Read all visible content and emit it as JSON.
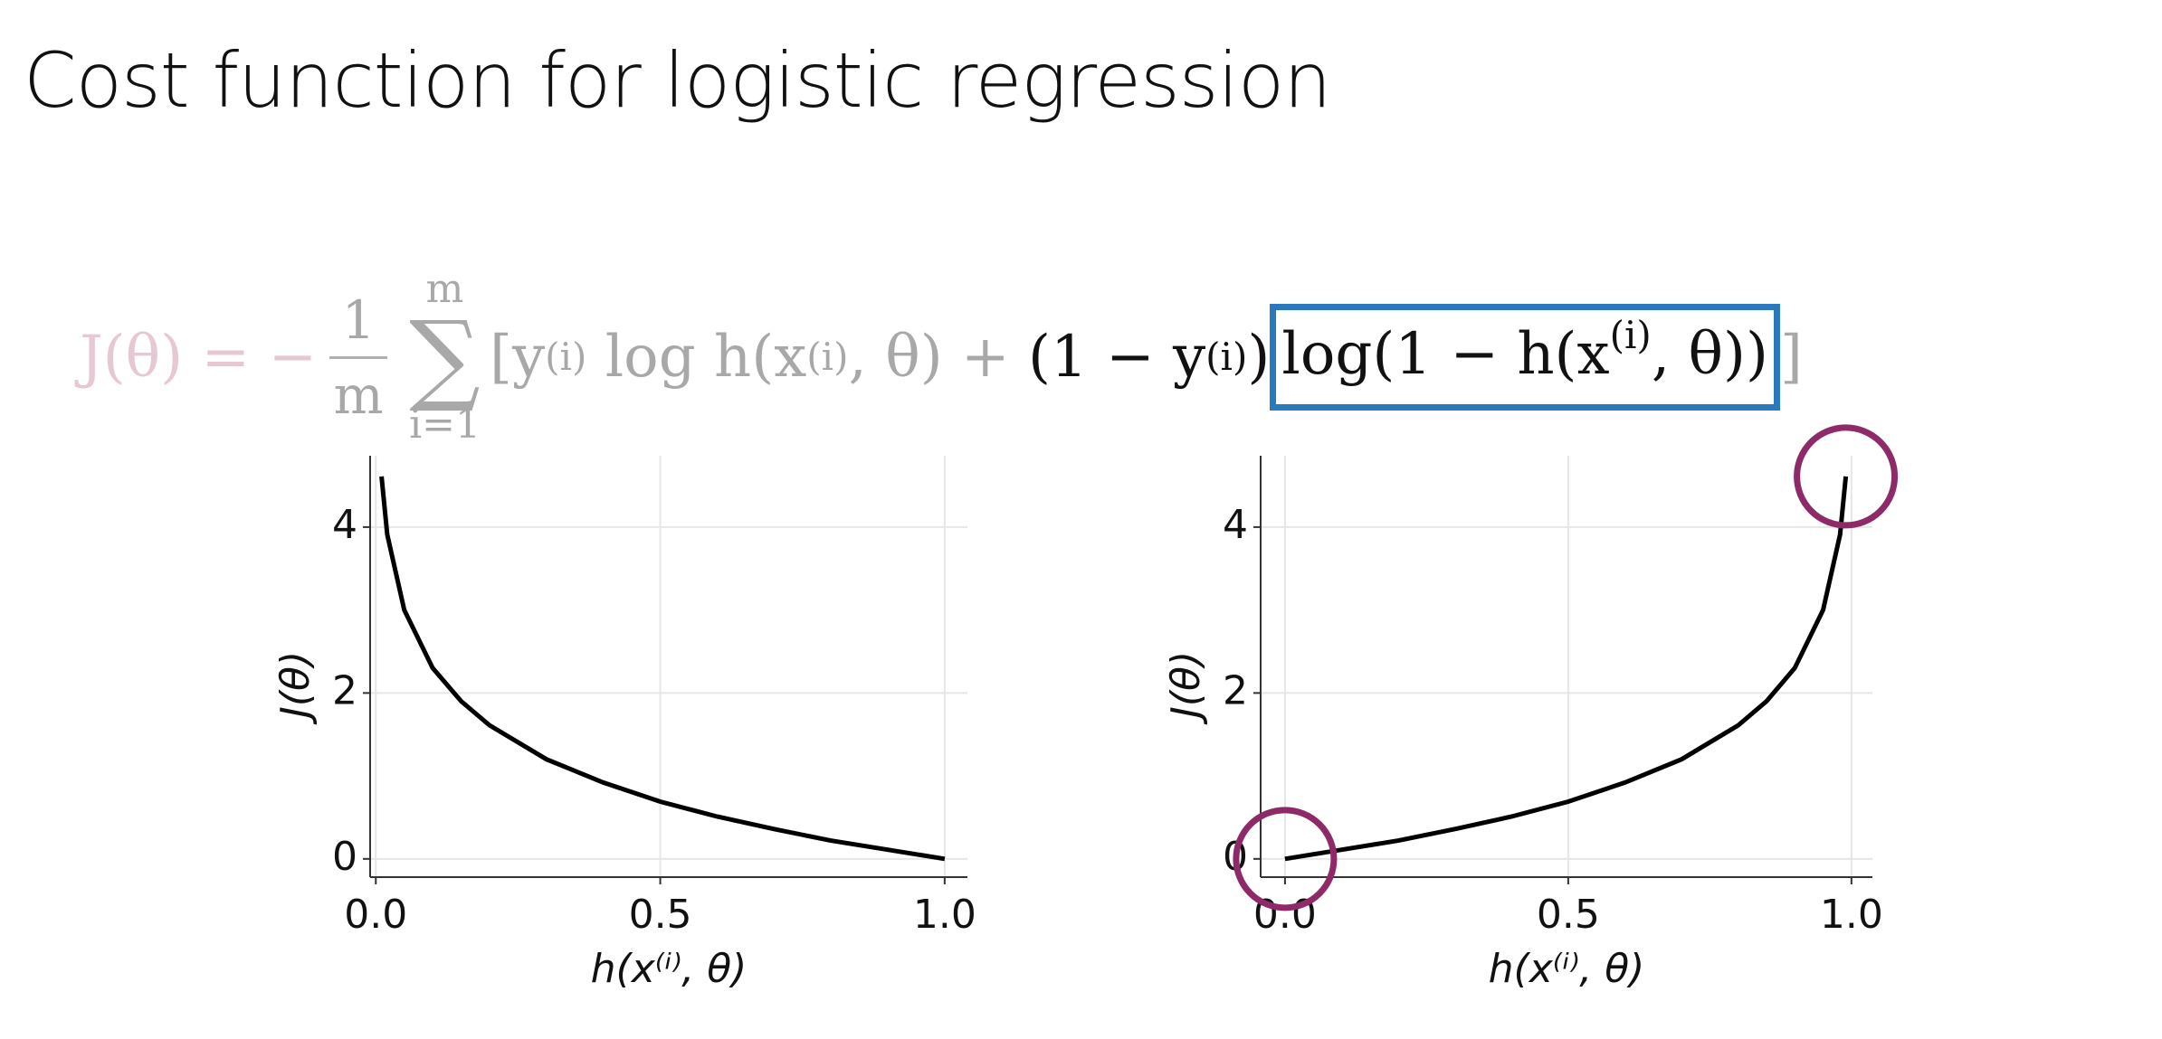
{
  "title": "Cost function for logistic regression",
  "formula": {
    "lhs": "J(θ) = −",
    "frac_num": "1",
    "frac_den": "m",
    "sum_symbol": "∑",
    "sum_upper": "m",
    "sum_lower": "i=1",
    "segments": [
      {
        "text": "[y",
        "style": "gray"
      },
      {
        "text": "(i)",
        "style": "gray",
        "sup": true
      },
      {
        "text": " log h(x",
        "style": "gray"
      },
      {
        "text": "(i)",
        "style": "gray",
        "sup": true
      },
      {
        "text": ", θ) + ",
        "style": "gray"
      },
      {
        "text": "(1 − y",
        "style": "black"
      },
      {
        "text": "(i)",
        "style": "black",
        "sup": true
      },
      {
        "text": ")",
        "style": "black"
      },
      {
        "text": "log(1 − h(x",
        "style": "boxed"
      },
      {
        "text": "(i)",
        "style": "boxed",
        "sup": true
      },
      {
        "text": ", θ))",
        "style": "boxed"
      },
      {
        "text": "]",
        "style": "gray"
      }
    ]
  },
  "chart_data": [
    {
      "type": "line",
      "color": "#000000",
      "xlabel": "h(x⁽ⁱ⁾, θ)",
      "ylabel": "J(θ)",
      "grid": true,
      "x": [
        0.01,
        0.02,
        0.05,
        0.1,
        0.15,
        0.2,
        0.3,
        0.4,
        0.5,
        0.6,
        0.7,
        0.8,
        0.9,
        1.0
      ],
      "values": [
        4.61,
        3.91,
        3.0,
        2.3,
        1.9,
        1.61,
        1.2,
        0.92,
        0.69,
        0.51,
        0.36,
        0.22,
        0.11,
        0
      ],
      "xlim": [
        -0.01,
        1.04
      ],
      "ylim": [
        -0.22,
        4.86
      ],
      "xticks": [
        {
          "value": 0,
          "label": "0.0"
        },
        0.5,
        {
          "value": 1,
          "label": "1.0"
        }
      ],
      "yticks": [
        0,
        2,
        4
      ],
      "highlight_ends": false
    },
    {
      "type": "line",
      "color": "#000000",
      "xlabel": "h(x⁽ⁱ⁾, θ)",
      "ylabel": "J(θ)",
      "grid": true,
      "x": [
        0.0,
        0.1,
        0.2,
        0.3,
        0.4,
        0.5,
        0.6,
        0.7,
        0.8,
        0.85,
        0.9,
        0.95,
        0.98,
        0.99
      ],
      "values": [
        0,
        0.11,
        0.22,
        0.36,
        0.51,
        0.69,
        0.92,
        1.2,
        1.61,
        1.9,
        2.3,
        3.0,
        3.91,
        4.61
      ],
      "xlim": [
        -0.043,
        1.037
      ],
      "ylim": [
        -0.22,
        4.86
      ],
      "xticks": [
        {
          "value": 0,
          "label": "0.0"
        },
        0.5,
        {
          "value": 1,
          "label": "1.0"
        }
      ],
      "yticks": [
        0,
        2,
        4
      ],
      "highlight_ends": true,
      "highlight_color": "#8e2a68"
    }
  ]
}
